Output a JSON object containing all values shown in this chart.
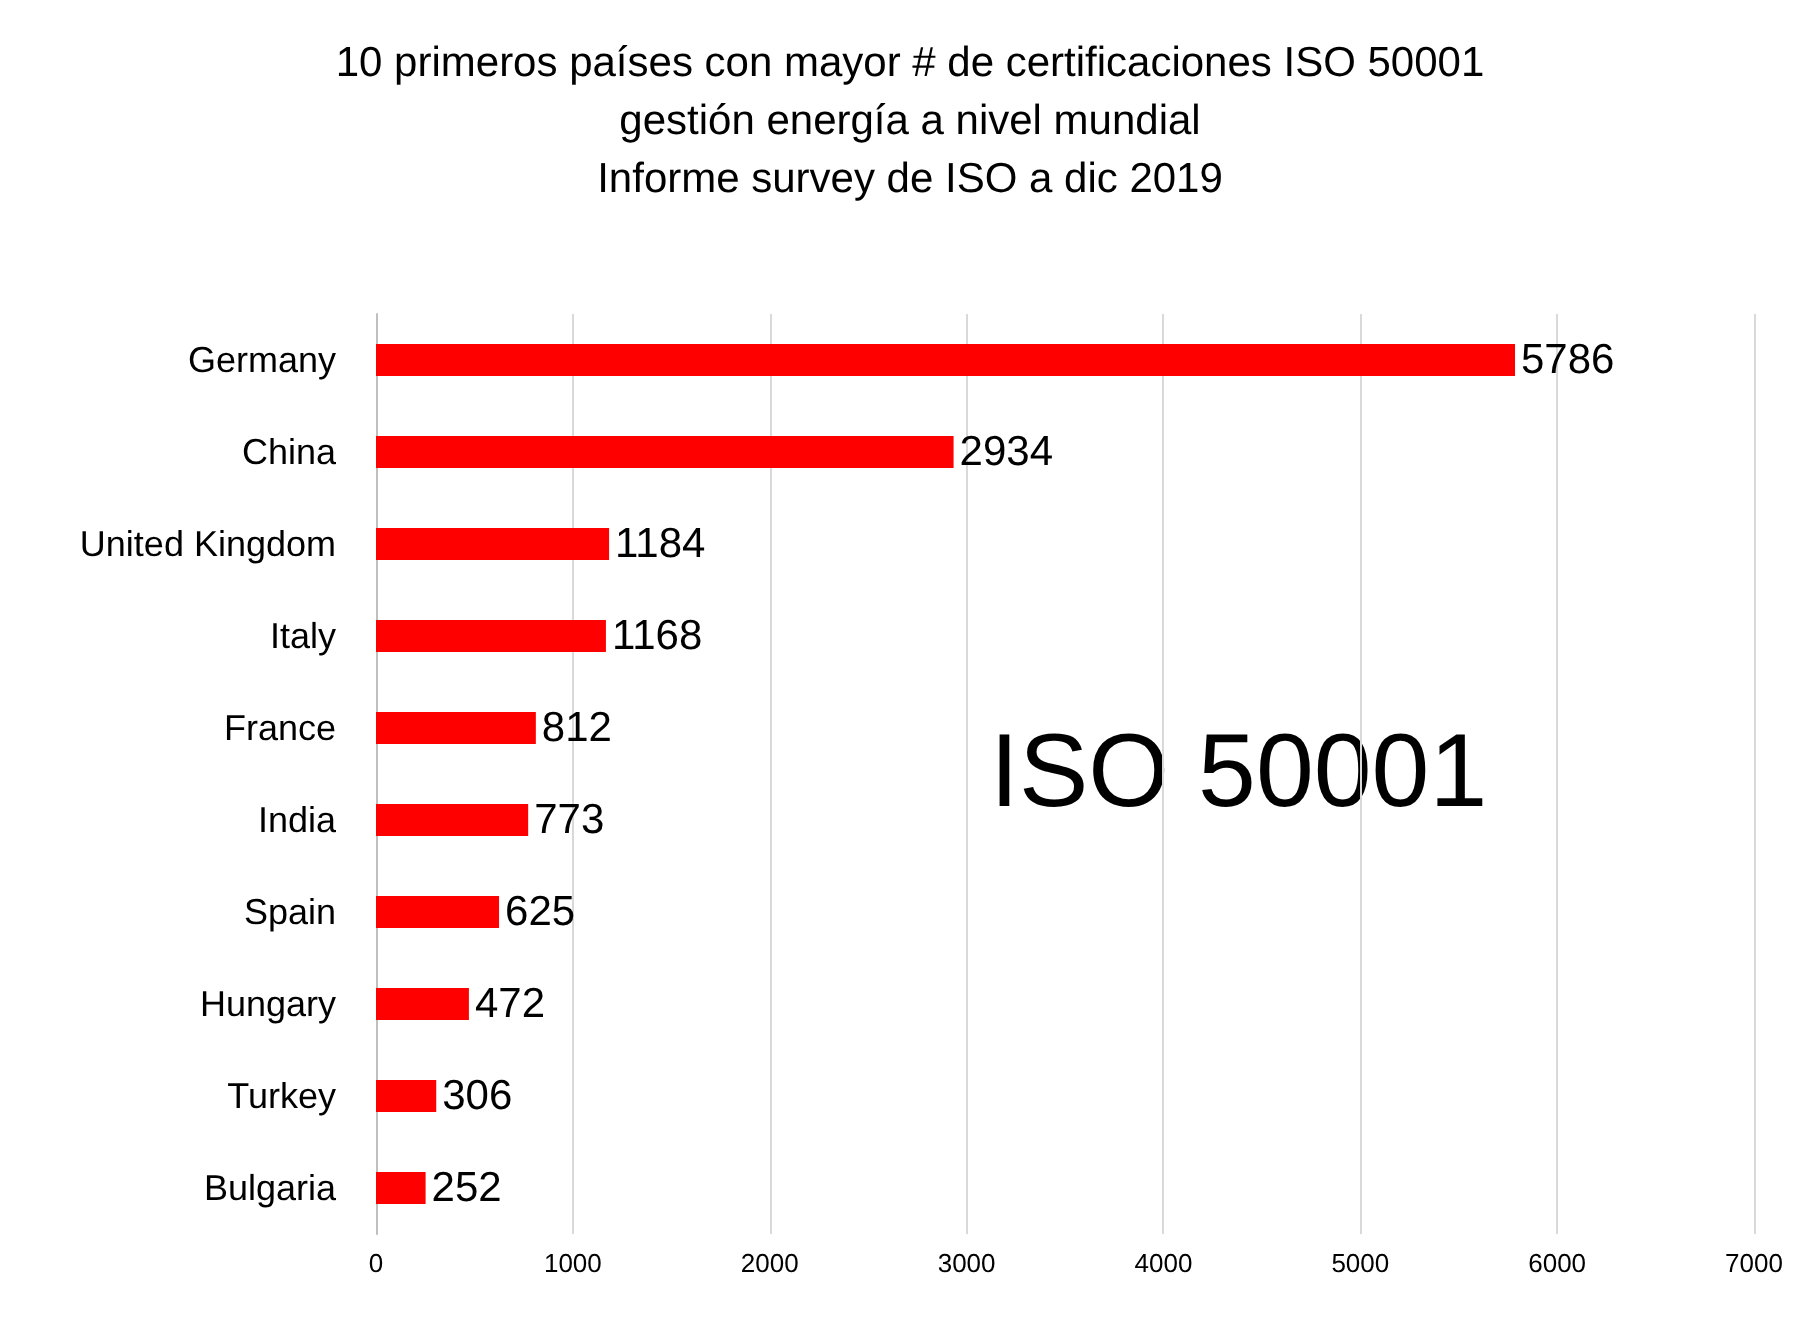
{
  "chart_data": {
    "type": "bar",
    "orientation": "horizontal",
    "title": "10 primeros países con mayor # de certificaciones ISO 50001\ngestión energía a nivel mundial\nInforme survey de ISO a dic 2019",
    "categories": [
      "Germany",
      "China",
      "United Kingdom",
      "Italy",
      "France",
      "India",
      "Spain",
      "Hungary",
      "Turkey",
      "Bulgaria"
    ],
    "values": [
      5786,
      2934,
      1184,
      1168,
      812,
      773,
      625,
      472,
      306,
      252
    ],
    "color": "#ff0000",
    "data_labels": true,
    "xlim": [
      0,
      7000
    ],
    "xticks": [
      0,
      1000,
      2000,
      3000,
      4000,
      5000,
      6000,
      7000
    ],
    "grid": "x",
    "annotations": [
      "ISO 50001"
    ]
  }
}
